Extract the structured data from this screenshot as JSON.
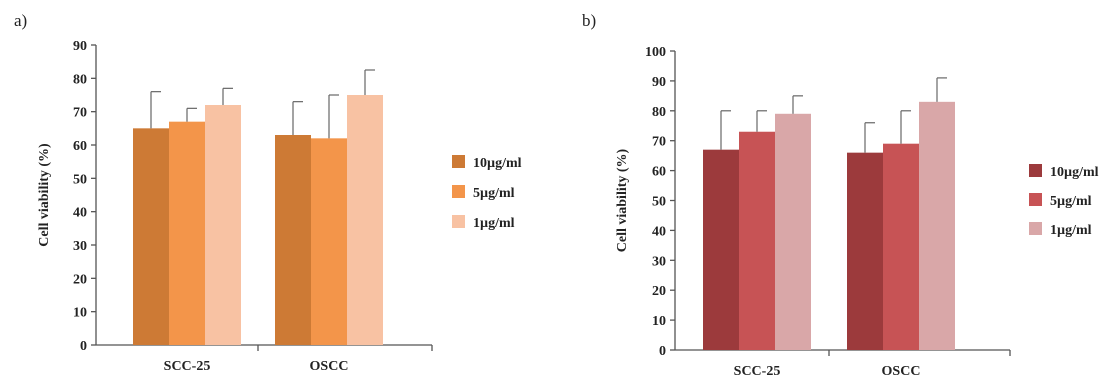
{
  "chart_data": [
    {
      "panel_label": "a)",
      "type": "bar",
      "categories": [
        "SCC-25",
        "OSCC"
      ],
      "ylabel": "Cell viability (%)",
      "xlabel": "",
      "ylim": [
        0,
        90
      ],
      "yticks": [
        0,
        10,
        20,
        30,
        40,
        50,
        60,
        70,
        80,
        90
      ],
      "grid": false,
      "legend": "right",
      "series": [
        {
          "name": "10µg/ml",
          "color": "#cd7a35",
          "values": [
            65,
            63
          ],
          "errors": [
            11,
            10
          ]
        },
        {
          "name": "5µg/ml",
          "color": "#f3954a",
          "values": [
            67,
            62
          ],
          "errors": [
            4,
            13
          ]
        },
        {
          "name": "1µg/ml",
          "color": "#f8c2a3",
          "values": [
            72,
            75
          ],
          "errors": [
            5,
            7.5
          ]
        }
      ]
    },
    {
      "panel_label": "b)",
      "type": "bar",
      "categories": [
        "SCC-25",
        "OSCC"
      ],
      "ylabel": "Cell viability (%)",
      "xlabel": "",
      "ylim": [
        0,
        100
      ],
      "yticks": [
        0,
        10,
        20,
        30,
        40,
        50,
        60,
        70,
        80,
        90,
        100
      ],
      "grid": false,
      "legend": "right",
      "series": [
        {
          "name": "10µg/ml",
          "color": "#9c3a3c",
          "values": [
            67,
            66
          ],
          "errors": [
            13,
            10
          ]
        },
        {
          "name": "5µg/ml",
          "color": "#c75355",
          "values": [
            73,
            69
          ],
          "errors": [
            7,
            11
          ]
        },
        {
          "name": "1µg/ml",
          "color": "#d9a7a8",
          "values": [
            79,
            83
          ],
          "errors": [
            6,
            8
          ]
        }
      ]
    }
  ]
}
